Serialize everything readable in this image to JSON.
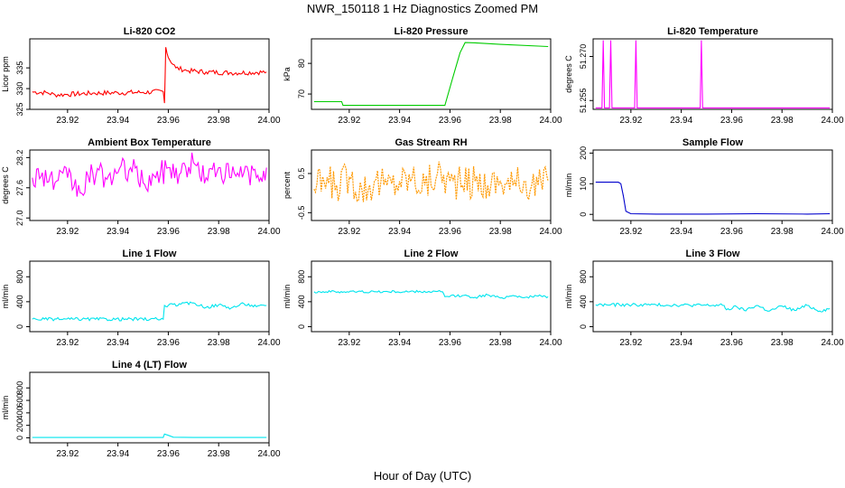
{
  "page": {
    "title": "NWR_150118  1 Hz Diagnostics Zoomed PM",
    "xlabel": "Hour of Day (UTC)"
  },
  "chart_data": [
    {
      "id": "co2",
      "type": "line",
      "title": "Li-820 CO2",
      "ylabel": "Licor ppm",
      "color": "#ff0000",
      "xlim": [
        23.905,
        24.0
      ],
      "ylim": [
        325,
        342
      ],
      "x_ticks": [
        "23.92",
        "23.94",
        "23.96",
        "23.98",
        "24.00"
      ],
      "y_ticks": [
        "325",
        "330",
        "335"
      ],
      "series": [
        {
          "name": "CO2",
          "x": [
            23.906,
            23.912,
            23.915,
            23.92,
            23.93,
            23.94,
            23.95,
            23.958,
            23.9585,
            23.959,
            23.96,
            23.963,
            23.968,
            23.975,
            23.985,
            23.999
          ],
          "y": [
            329.2,
            329.0,
            328.5,
            328.6,
            328.9,
            329.0,
            329.1,
            329.3,
            326.5,
            340.0,
            337.5,
            335.0,
            334.3,
            334.0,
            333.8,
            334.0
          ]
        }
      ]
    },
    {
      "id": "pressure",
      "type": "line",
      "title": "Li-820 Pressure",
      "ylabel": "kPa",
      "color": "#00cc00",
      "xlim": [
        23.905,
        24.0
      ],
      "ylim": [
        65,
        88
      ],
      "x_ticks": [
        "23.92",
        "23.94",
        "23.96",
        "23.98",
        "24.00"
      ],
      "y_ticks": [
        "70",
        "80"
      ],
      "series": [
        {
          "name": "Pressure",
          "x": [
            23.906,
            23.917,
            23.9175,
            23.958,
            23.961,
            23.964,
            23.966,
            23.97,
            23.98,
            23.999
          ],
          "y": [
            67.5,
            67.5,
            66.3,
            66.3,
            75.0,
            83.5,
            86.8,
            86.7,
            86.2,
            85.5
          ]
        }
      ]
    },
    {
      "id": "temp",
      "type": "line",
      "title": "Li-820 Temperature",
      "ylabel": "degrees C",
      "color": "#ff00ff",
      "xlim": [
        23.905,
        24.0
      ],
      "ylim": [
        51.252,
        51.276
      ],
      "x_ticks": [
        "23.92",
        "23.94",
        "23.96",
        "23.98",
        "24.00"
      ],
      "y_ticks": [
        "51.255",
        "51.270"
      ],
      "series": [
        {
          "name": "Temperature",
          "x": [
            23.906,
            23.9085,
            23.909,
            23.9095,
            23.9115,
            23.912,
            23.9125,
            23.9215,
            23.922,
            23.9225,
            23.9475,
            23.948,
            23.9485,
            23.999
          ],
          "y": [
            51.2525,
            51.2525,
            51.2755,
            51.2525,
            51.2525,
            51.2755,
            51.2525,
            51.2525,
            51.2755,
            51.2525,
            51.2525,
            51.2755,
            51.2525,
            51.2525
          ]
        }
      ]
    },
    {
      "id": "ambient",
      "type": "line",
      "title": "Ambient Box Temperature",
      "ylabel": "degrees C",
      "color": "#ff00ff",
      "xlim": [
        23.905,
        24.0
      ],
      "ylim": [
        26.95,
        28.35
      ],
      "x_ticks": [
        "23.92",
        "23.94",
        "23.96",
        "23.98",
        "24.00"
      ],
      "y_ticks": [
        "27.0",
        "27.6",
        "28.2"
      ],
      "series": [
        {
          "name": "Ambient",
          "x": [
            23.906,
            23.91,
            23.915,
            23.92,
            23.925,
            23.93,
            23.935,
            23.94,
            23.945,
            23.95,
            23.955,
            23.96,
            23.965,
            23.97,
            23.975,
            23.98,
            23.985,
            23.99,
            23.995,
            23.999
          ],
          "y": [
            27.8,
            27.9,
            27.7,
            27.8,
            27.5,
            27.9,
            27.8,
            27.9,
            28.0,
            27.7,
            27.8,
            28.0,
            27.9,
            28.1,
            27.8,
            28.0,
            27.8,
            27.9,
            27.8,
            28.0
          ]
        }
      ]
    },
    {
      "id": "rh",
      "type": "line",
      "title": "Gas Stream RH",
      "ylabel": "percent",
      "color": "#ff9900",
      "xlim": [
        23.905,
        24.0
      ],
      "ylim": [
        -0.7,
        1.1
      ],
      "x_ticks": [
        "23.92",
        "23.94",
        "23.96",
        "23.98",
        "24.00"
      ],
      "y_ticks": [
        "-0.5",
        "0.5"
      ],
      "series": [
        {
          "name": "RH",
          "x": [
            23.906,
            23.91,
            23.915,
            23.92,
            23.925,
            23.93,
            23.935,
            23.94,
            23.945,
            23.95,
            23.955,
            23.96,
            23.965,
            23.97,
            23.975,
            23.98,
            23.985,
            23.99,
            23.995,
            23.999
          ],
          "y": [
            0.1,
            0.3,
            0.2,
            0.4,
            0.1,
            0.3,
            0.2,
            0.3,
            0.4,
            0.2,
            0.5,
            0.3,
            0.2,
            0.3,
            0.2,
            0.3,
            0.2,
            0.3,
            0.2,
            0.3
          ]
        }
      ]
    },
    {
      "id": "sample",
      "type": "line",
      "title": "Sample Flow",
      "ylabel": "ml/min",
      "color": "#0000cc",
      "xlim": [
        23.905,
        24.0
      ],
      "ylim": [
        -20,
        210
      ],
      "x_ticks": [
        "23.92",
        "23.94",
        "23.96",
        "23.98",
        "24.00"
      ],
      "y_ticks": [
        "0",
        "100",
        "200"
      ],
      "series": [
        {
          "name": "Sample",
          "x": [
            23.906,
            23.915,
            23.916,
            23.917,
            23.918,
            23.92,
            23.93,
            23.95,
            23.97,
            23.99,
            23.999
          ],
          "y": [
            105,
            105,
            100,
            60,
            10,
            2,
            1,
            1,
            2,
            1,
            2
          ]
        }
      ]
    },
    {
      "id": "line1",
      "type": "line",
      "title": "Line 1 Flow",
      "ylabel": "ml/min",
      "color": "#00e5ee",
      "xlim": [
        23.905,
        24.0
      ],
      "ylim": [
        -80,
        1050
      ],
      "x_ticks": [
        "23.92",
        "23.94",
        "23.96",
        "23.98",
        "24.00"
      ],
      "y_ticks": [
        "0",
        "400",
        "800"
      ],
      "series": [
        {
          "name": "Line 1",
          "x": [
            23.906,
            23.958,
            23.9585,
            23.96,
            23.965,
            23.97,
            23.975,
            23.98,
            23.985,
            23.99,
            23.995,
            23.999
          ],
          "y": [
            120,
            120,
            340,
            340,
            360,
            380,
            310,
            350,
            300,
            370,
            320,
            340
          ]
        }
      ]
    },
    {
      "id": "line2",
      "type": "line",
      "title": "Line 2 Flow",
      "ylabel": "ml/min",
      "color": "#00e5ee",
      "xlim": [
        23.905,
        24.0
      ],
      "ylim": [
        -80,
        1050
      ],
      "x_ticks": [
        "23.92",
        "23.94",
        "23.96",
        "23.98",
        "24.00"
      ],
      "y_ticks": [
        "0",
        "400",
        "800"
      ],
      "series": [
        {
          "name": "Line 2",
          "x": [
            23.906,
            23.93,
            23.957,
            23.958,
            23.965,
            23.97,
            23.975,
            23.98,
            23.985,
            23.99,
            23.995,
            23.999
          ],
          "y": [
            560,
            560,
            560,
            480,
            500,
            470,
            510,
            460,
            500,
            470,
            490,
            480
          ]
        }
      ]
    },
    {
      "id": "line3",
      "type": "line",
      "title": "Line 3 Flow",
      "ylabel": "ml/min",
      "color": "#00e5ee",
      "xlim": [
        23.905,
        24.0
      ],
      "ylim": [
        -80,
        1050
      ],
      "x_ticks": [
        "23.92",
        "23.94",
        "23.96",
        "23.98",
        "24.00"
      ],
      "y_ticks": [
        "0",
        "400",
        "800"
      ],
      "series": [
        {
          "name": "Line 3",
          "x": [
            23.906,
            23.93,
            23.957,
            23.958,
            23.962,
            23.965,
            23.97,
            23.975,
            23.98,
            23.985,
            23.99,
            23.995,
            23.999
          ],
          "y": [
            350,
            350,
            340,
            270,
            320,
            260,
            340,
            250,
            330,
            260,
            340,
            250,
            290
          ]
        }
      ]
    },
    {
      "id": "line4",
      "type": "line",
      "title": "Line 4 (LT) Flow",
      "ylabel": "ml/min",
      "color": "#00e5ee",
      "xlim": [
        23.905,
        24.0
      ],
      "ylim": [
        -80,
        1050
      ],
      "x_ticks": [
        "23.92",
        "23.94",
        "23.96",
        "23.98",
        "24.00"
      ],
      "y_ticks": [
        "0",
        "200",
        "400",
        "600",
        "800"
      ],
      "series": [
        {
          "name": "Line 4",
          "x": [
            23.906,
            23.95,
            23.958,
            23.9585,
            23.96,
            23.962,
            23.97,
            23.999
          ],
          "y": [
            5,
            5,
            5,
            60,
            40,
            10,
            5,
            5
          ]
        }
      ]
    }
  ]
}
